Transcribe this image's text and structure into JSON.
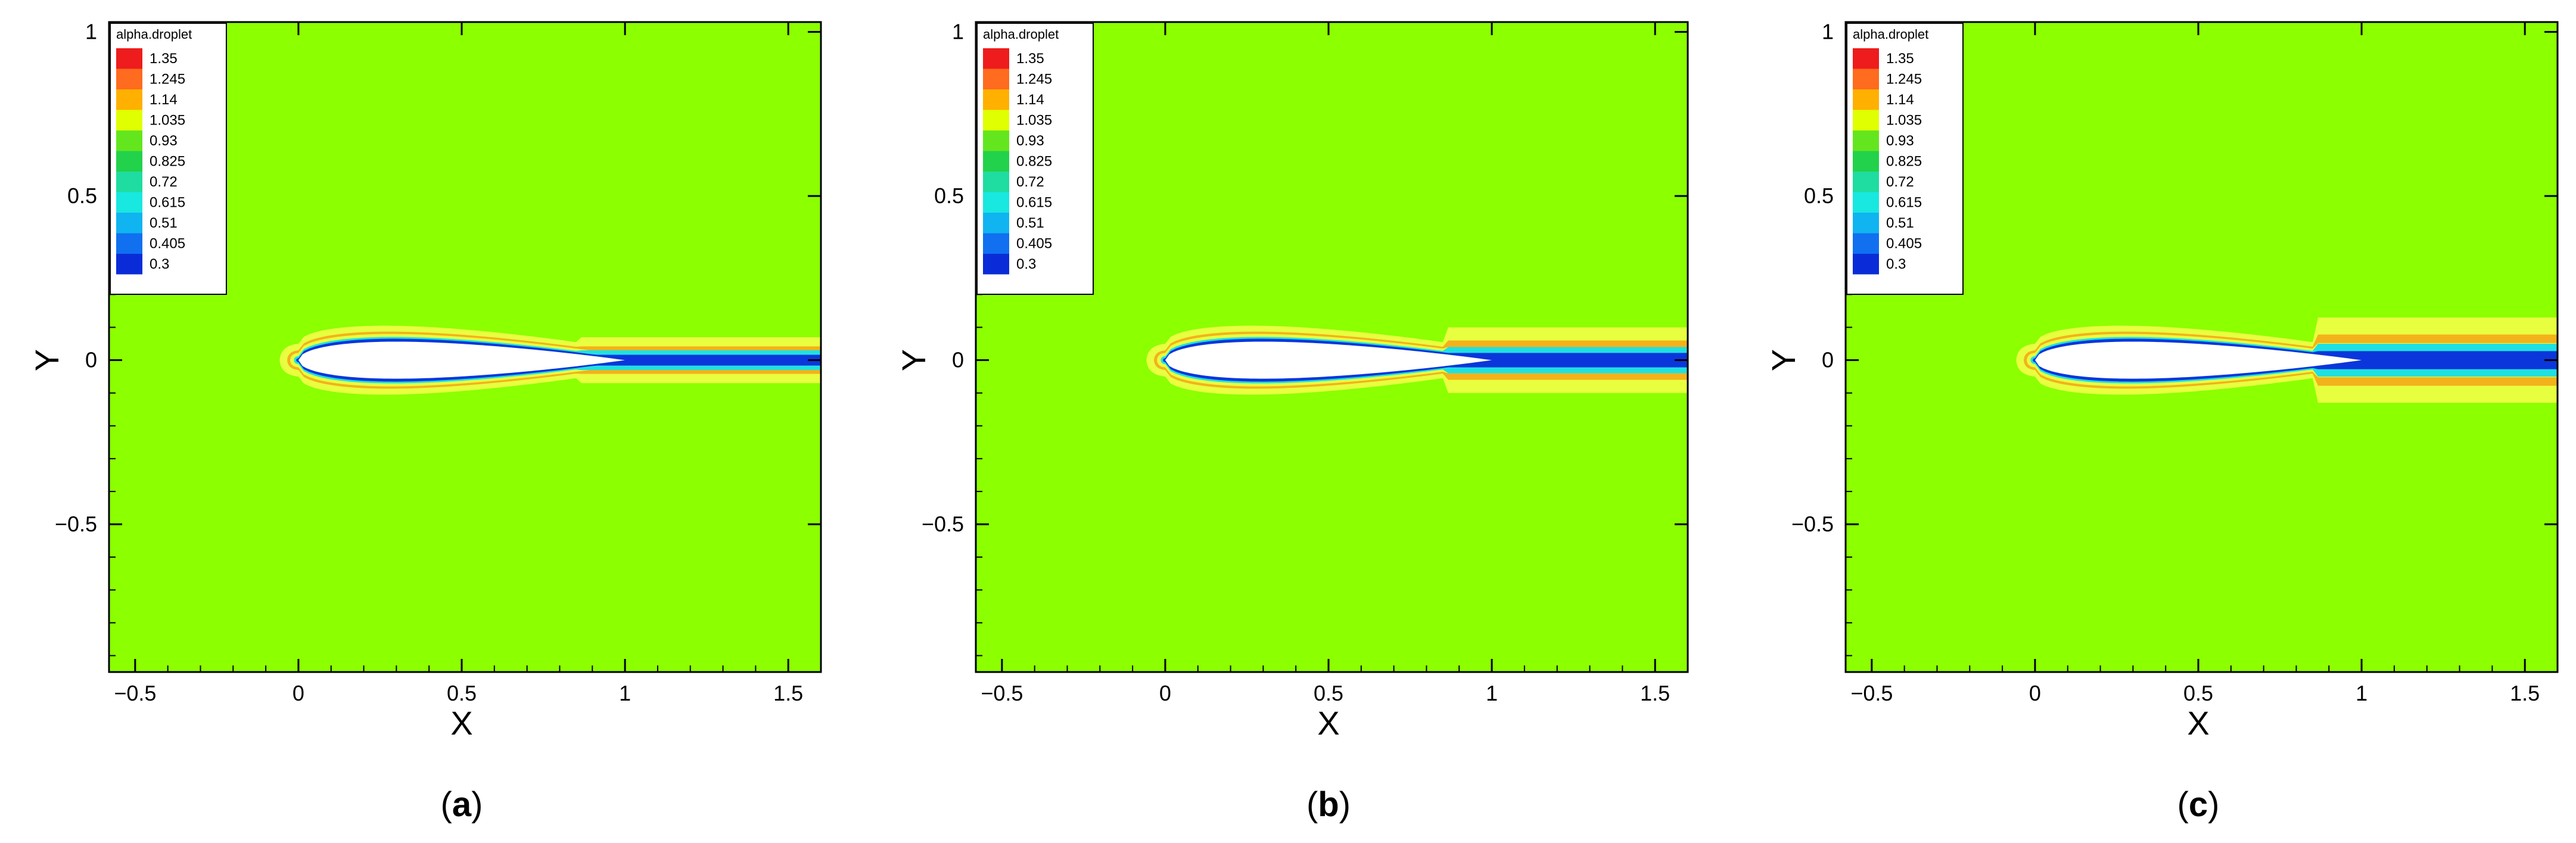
{
  "chart_data": [
    {
      "type": "heatmap",
      "panel_label": "a",
      "xlabel": "X",
      "ylabel": "Y",
      "xlim": [
        -0.58,
        1.6
      ],
      "ylim": [
        -0.95,
        1.03
      ],
      "xticks": [
        {
          "v": -0.5,
          "label": "-0.5"
        },
        {
          "v": 0,
          "label": "0"
        },
        {
          "v": 0.5,
          "label": "0.5"
        },
        {
          "v": 1,
          "label": "1"
        },
        {
          "v": 1.5,
          "label": "1.5"
        }
      ],
      "yticks": [
        {
          "v": 1,
          "label": "1"
        },
        {
          "v": 0.5,
          "label": "0.5"
        },
        {
          "v": 0,
          "label": "0"
        },
        {
          "v": -0.5,
          "label": "-0.5"
        }
      ],
      "freestream_value": 1.0,
      "airfoil_chord": [
        0,
        1
      ],
      "wake_halfwidth_outer": 0.07,
      "wake_halfwidth_inner": 0.03
    },
    {
      "type": "heatmap",
      "panel_label": "b",
      "xlabel": "X",
      "ylabel": "Y",
      "xlim": [
        -0.58,
        1.6
      ],
      "ylim": [
        -0.95,
        1.03
      ],
      "xticks": [
        {
          "v": -0.5,
          "label": "-0.5"
        },
        {
          "v": 0,
          "label": "0"
        },
        {
          "v": 0.5,
          "label": "0.5"
        },
        {
          "v": 1,
          "label": "1"
        },
        {
          "v": 1.5,
          "label": "1.5"
        }
      ],
      "yticks": [
        {
          "v": 1,
          "label": "1"
        },
        {
          "v": 0.5,
          "label": "0.5"
        },
        {
          "v": 0,
          "label": "0"
        },
        {
          "v": -0.5,
          "label": "-0.5"
        }
      ],
      "freestream_value": 1.0,
      "airfoil_chord": [
        0,
        1
      ],
      "wake_halfwidth_outer": 0.1,
      "wake_halfwidth_inner": 0.04
    },
    {
      "type": "heatmap",
      "panel_label": "c",
      "xlabel": "X",
      "ylabel": "Y",
      "xlim": [
        -0.58,
        1.6
      ],
      "ylim": [
        -0.95,
        1.03
      ],
      "xticks": [
        {
          "v": -0.5,
          "label": "-0.5"
        },
        {
          "v": 0,
          "label": "0"
        },
        {
          "v": 0.5,
          "label": "0.5"
        },
        {
          "v": 1,
          "label": "1"
        },
        {
          "v": 1.5,
          "label": "1.5"
        }
      ],
      "yticks": [
        {
          "v": 1,
          "label": "1"
        },
        {
          "v": 0.5,
          "label": "0.5"
        },
        {
          "v": 0,
          "label": "0"
        },
        {
          "v": -0.5,
          "label": "-0.5"
        }
      ],
      "freestream_value": 1.0,
      "airfoil_chord": [
        0,
        1
      ],
      "wake_halfwidth_outer": 0.13,
      "wake_halfwidth_inner": 0.05
    }
  ],
  "legend": {
    "title": "alpha.droplet",
    "levels": [
      {
        "label": "1.35",
        "color": "#ee1c1c"
      },
      {
        "label": "1.245",
        "color": "#ff6b1f"
      },
      {
        "label": "1.14",
        "color": "#ffb000"
      },
      {
        "label": "1.035",
        "color": "#e0ff00"
      },
      {
        "label": "0.93",
        "color": "#64e61e"
      },
      {
        "label": "0.825",
        "color": "#22d24a"
      },
      {
        "label": "0.72",
        "color": "#1fdca0"
      },
      {
        "label": "0.615",
        "color": "#18e8e0"
      },
      {
        "label": "0.51",
        "color": "#10b4f0"
      },
      {
        "label": "0.405",
        "color": "#1070f0"
      },
      {
        "label": "0.3",
        "color": "#0a2cd8"
      }
    ]
  },
  "colors": {
    "background_field": "#8cff00",
    "yellow_band": "#e8ff40",
    "orange_band": "#f4b21a",
    "cyan_band": "#20e0e0",
    "blue_band": "#0a36dc",
    "airfoil_fill": "#ffffff"
  }
}
